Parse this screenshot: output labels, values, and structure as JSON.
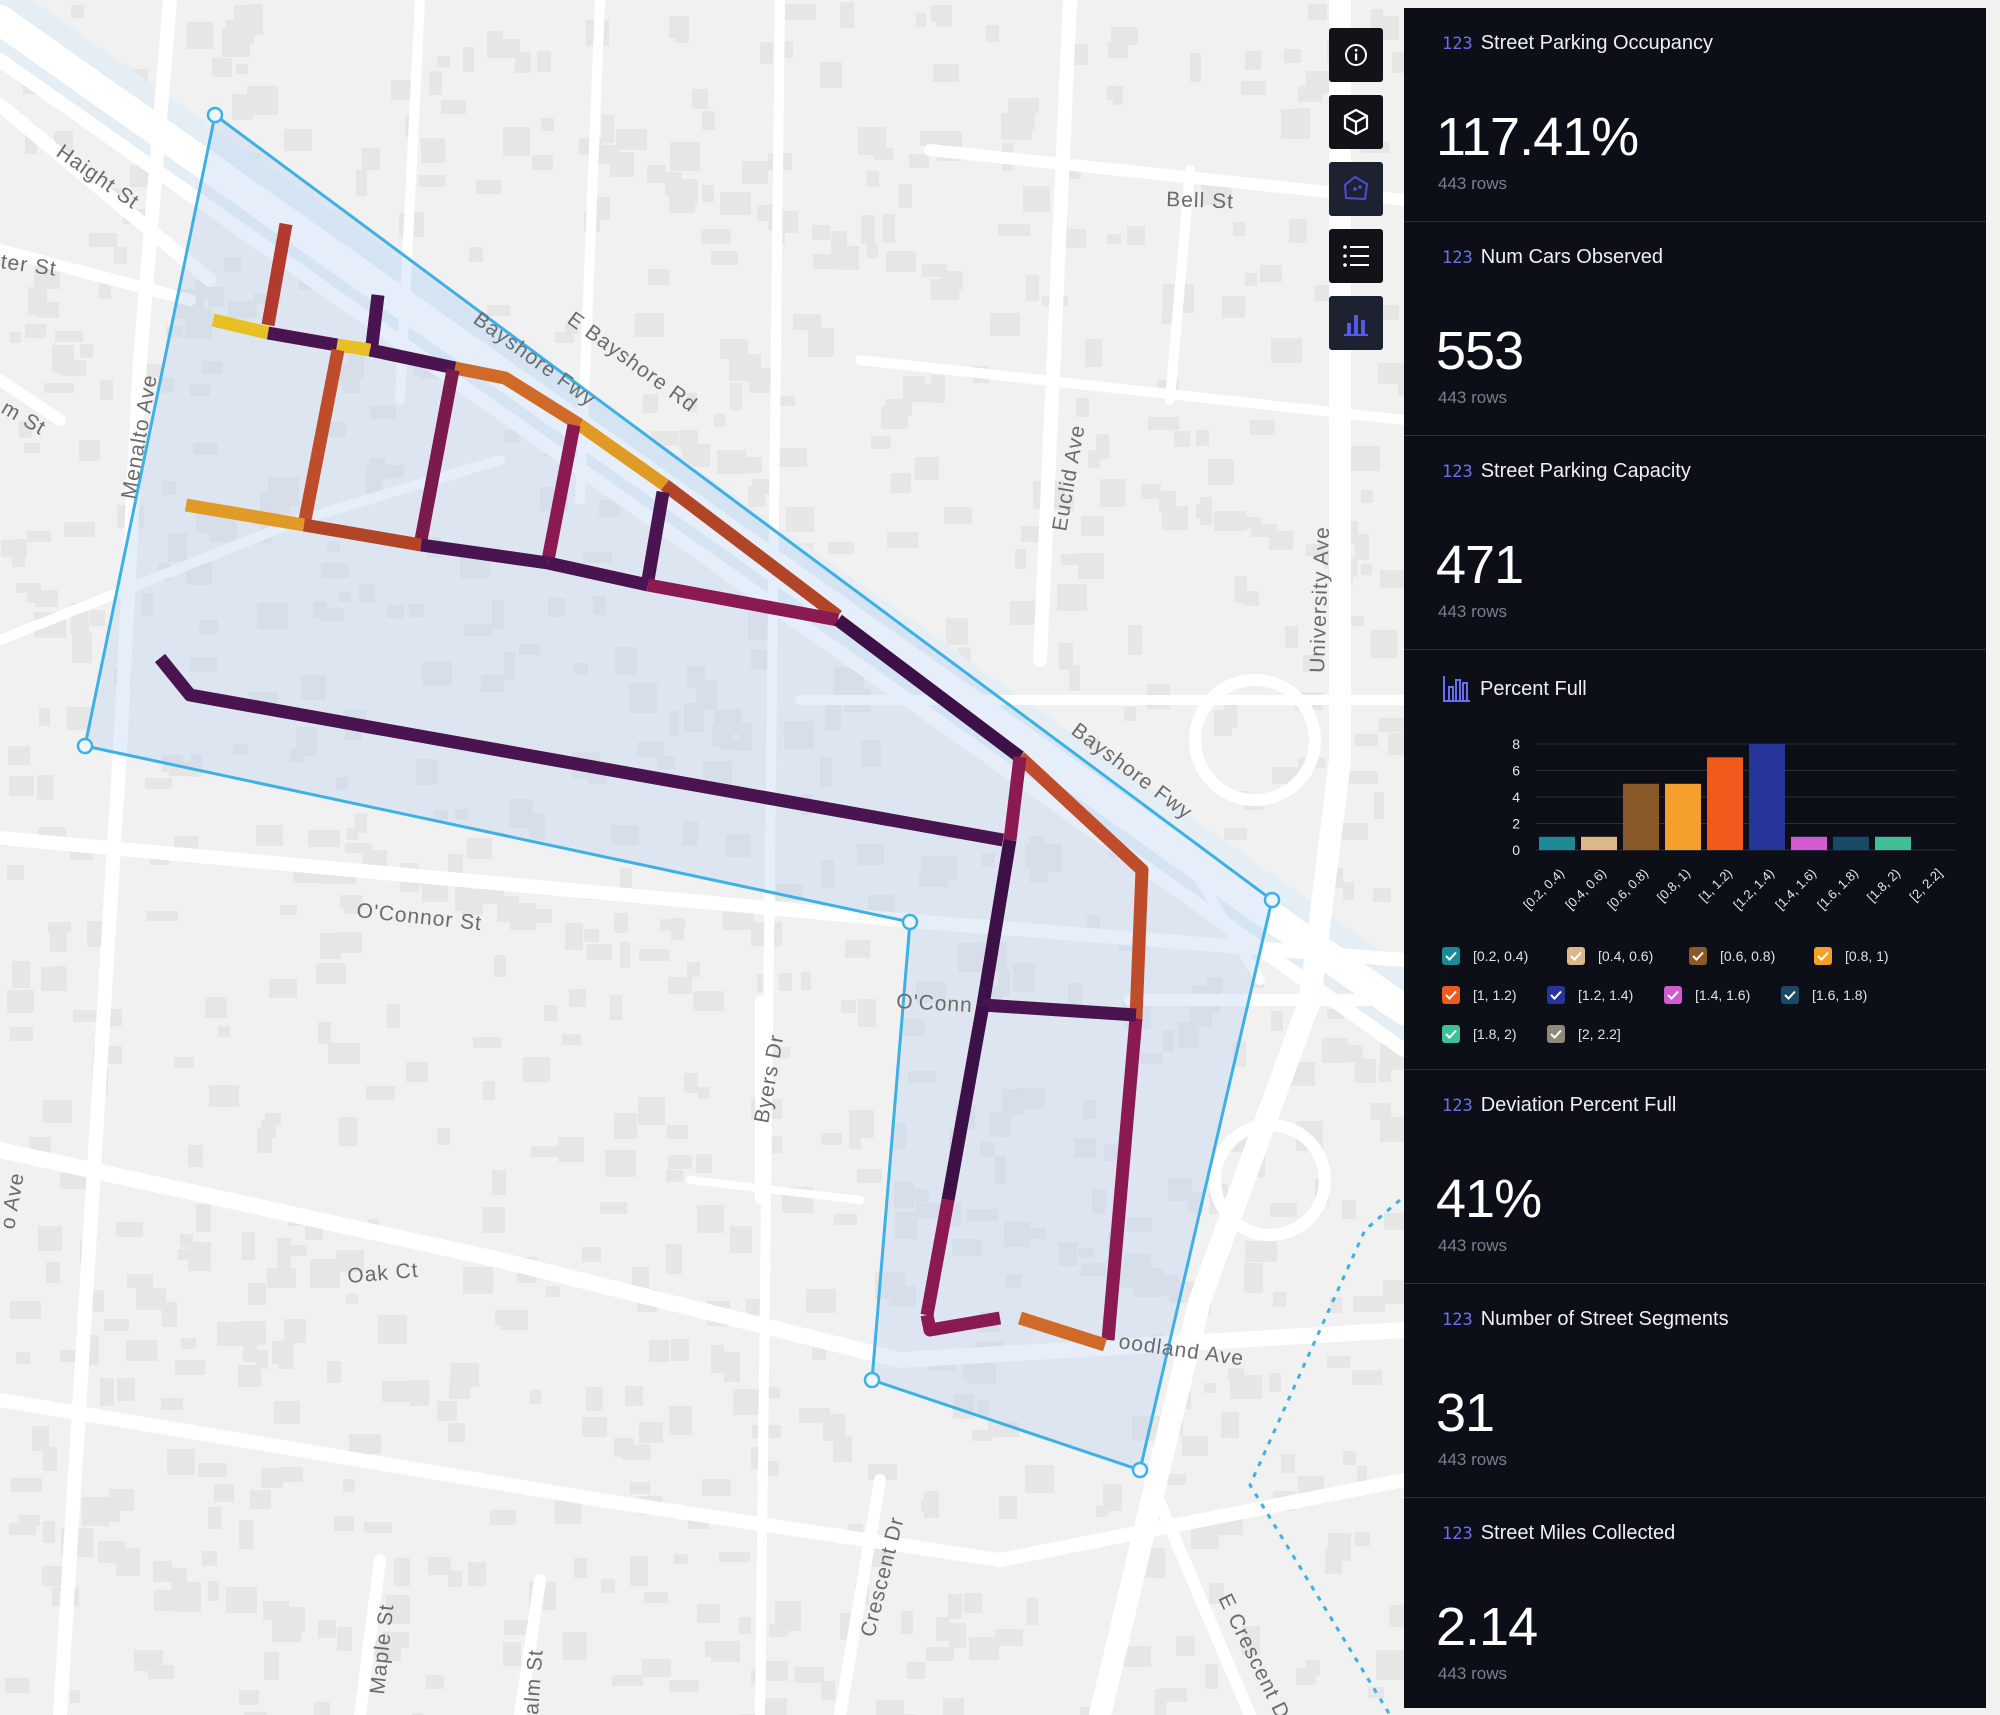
{
  "map": {
    "streets": {
      "haight": "Haight St",
      "ter": "ter St",
      "m_st": "m St",
      "menalto": "Menalto Ave",
      "bayshore_fwy_1": "Bayshore Fwy",
      "e_bayshore": "E Bayshore Rd",
      "bell": "Bell St",
      "euclid": "Euclid Ave",
      "university": "University Ave",
      "bayshore_fwy_2": "Bayshore Fwy",
      "oconnor": "O'Connor St",
      "oconnor_2": "O'Conn",
      "byers": "Byers Dr",
      "oak": "Oak Ct",
      "woodland": "oodland Ave",
      "crescent": "Crescent Dr",
      "e_crescent": "E Crescent Dr",
      "maple": "Maple St",
      "palm": "alm St",
      "ave_left": "o Ave"
    }
  },
  "toolbar": {
    "buttons": [
      {
        "icon": "info-icon"
      },
      {
        "icon": "cube-icon"
      },
      {
        "icon": "polygon-select-icon"
      },
      {
        "icon": "list-icon"
      },
      {
        "icon": "bar-chart-icon"
      }
    ]
  },
  "panel": {
    "type_tag": "123",
    "cards": [
      {
        "title": "Street Parking Occupancy",
        "value": "117.41%",
        "rows": "443 rows"
      },
      {
        "title": "Num Cars Observed",
        "value": "553",
        "rows": "443 rows"
      },
      {
        "title": "Street Parking Capacity",
        "value": "471",
        "rows": "443 rows"
      },
      {
        "title": "Deviation Percent Full",
        "value": "41%",
        "rows": "443 rows"
      },
      {
        "title": "Number of Street Segments",
        "value": "31",
        "rows": "443 rows"
      },
      {
        "title": "Street Miles Collected",
        "value": "2.14",
        "rows": "443 rows"
      }
    ],
    "histogram_title": "Percent Full"
  },
  "chart_data": {
    "type": "bar",
    "title": "Percent Full",
    "categories": [
      "[0.2, 0.4)",
      "[0.4, 0.6)",
      "[0.6, 0.8)",
      "[0.8, 1)",
      "[1, 1.2)",
      "[1.2, 1.4)",
      "[1.4, 1.6)",
      "[1.6, 1.8)",
      "[1.8, 2)",
      "[2, 2.2]"
    ],
    "legend_labels": [
      "[0.2, 0.4)",
      "[0.4, 0.6)",
      "[0.6, 0.8)",
      "[0.8, 1)",
      "[1, 1.2)",
      "[1.2, 1.4)",
      "[1.4, 1.6)",
      "[1.6, 1.8)",
      "[1.8, 2)",
      "[2, 2.2]"
    ],
    "values": [
      1,
      1,
      5,
      5,
      7,
      8,
      1,
      1,
      1,
      0
    ],
    "colors": [
      "#1c8a95",
      "#d9b98c",
      "#8a5a2b",
      "#f5a02a",
      "#f05a1a",
      "#27349a",
      "#d45ad0",
      "#1b4a66",
      "#3fbf96",
      "#8e8a7a"
    ],
    "yticks": [
      "0",
      "2",
      "4",
      "6",
      "8"
    ],
    "ylim": [
      0,
      8
    ],
    "grid": true,
    "legend_placement": "bottom"
  }
}
